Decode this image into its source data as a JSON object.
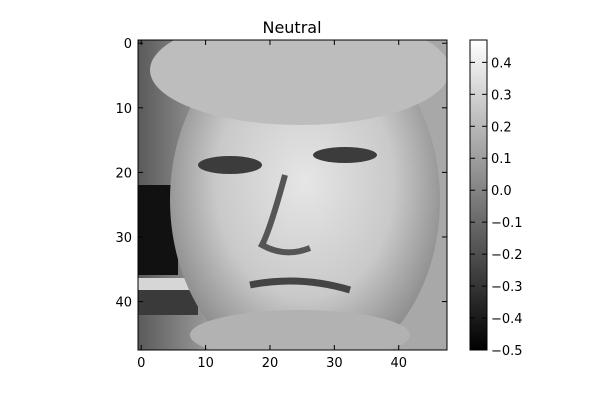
{
  "title": "Neutral",
  "image": {
    "kind": "grayscale-heatmap",
    "subject": "face-photo",
    "rows": 48,
    "cols": 48,
    "x_ticks": [
      "0",
      "10",
      "20",
      "30",
      "40"
    ],
    "y_ticks": [
      "0",
      "10",
      "20",
      "30",
      "40"
    ],
    "x_tick_values": [
      0,
      10,
      20,
      30,
      40
    ],
    "y_tick_values": [
      0,
      10,
      20,
      30,
      40
    ]
  },
  "colorbar": {
    "vmin": -0.5,
    "vmax": 0.47,
    "ticks": [
      "0.4",
      "0.3",
      "0.2",
      "0.1",
      "0.0",
      "−0.1",
      "−0.2",
      "−0.3",
      "−0.4",
      "−0.5"
    ],
    "tick_values": [
      0.4,
      0.3,
      0.2,
      0.1,
      0.0,
      -0.1,
      -0.2,
      -0.3,
      -0.4,
      -0.5
    ],
    "colormap": "gray",
    "low_color": "#000000",
    "high_color": "#ffffff"
  }
}
